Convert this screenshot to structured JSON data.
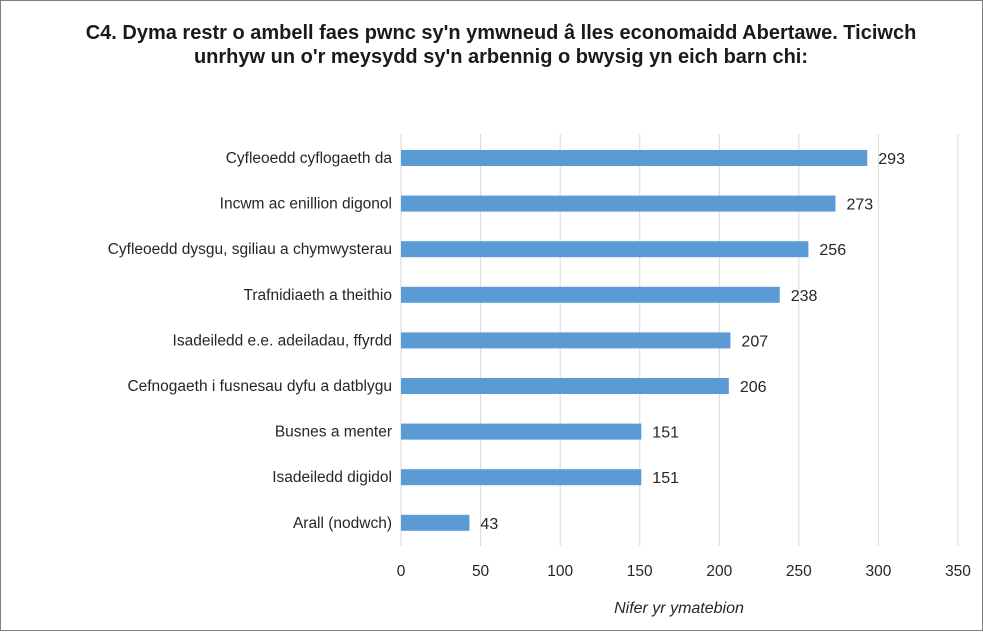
{
  "chart_data": {
    "type": "bar",
    "orientation": "horizontal",
    "title": "C4. Dyma restr o ambell faes pwnc sy'n ymwneud â lles economaidd Abertawe. Ticiwch unrhyw un o'r meysydd sy'n arbennig o bwysig yn eich barn chi:",
    "categories": [
      "Cyfleoedd cyflogaeth da",
      "Incwm ac enillion digonol",
      "Cyfleoedd dysgu, sgiliau a chymwysterau",
      "Trafnidiaeth a theithio",
      "Isadeiledd e.e. adeiladau, ffyrdd",
      "Cefnogaeth i fusnesau dyfu a datblygu",
      "Busnes a menter",
      "Isadeiledd digidol",
      "Arall (nodwch)"
    ],
    "values": [
      293,
      273,
      256,
      238,
      207,
      206,
      151,
      151,
      43
    ],
    "xlabel": "Nifer yr ymatebion",
    "ylabel": "",
    "xlim": [
      0,
      350
    ],
    "xticks": [
      0,
      50,
      100,
      150,
      200,
      250,
      300,
      350
    ],
    "grid": "vertical",
    "legend": "none",
    "data_labels": true,
    "colors": {
      "bar": "#5b9bd5",
      "grid": "#d9d9d9",
      "text": "#262626",
      "border": "#7f7f7f"
    }
  }
}
